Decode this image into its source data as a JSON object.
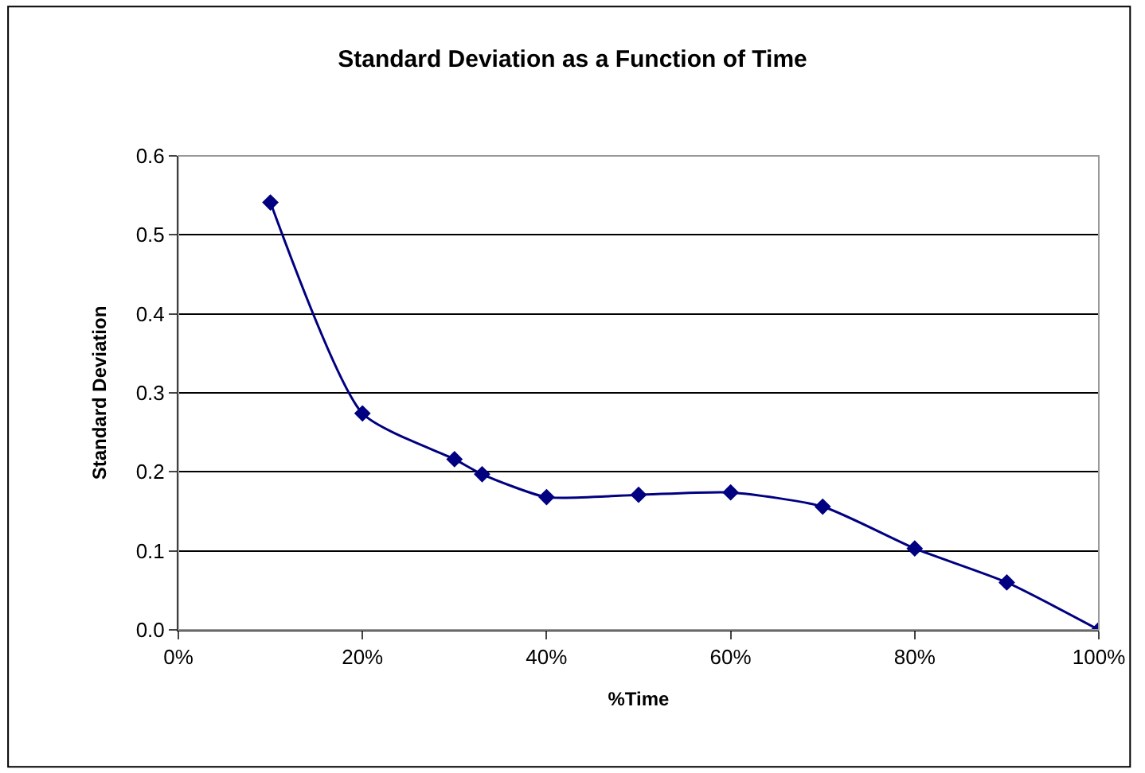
{
  "chart_data": {
    "type": "line",
    "title": "Standard Deviation as a Function of Time",
    "xlabel": "%Time",
    "ylabel": "Standard Deviation",
    "x": [
      0.1,
      0.2,
      0.3,
      0.33,
      0.4,
      0.5,
      0.6,
      0.7,
      0.8,
      0.9,
      1.0
    ],
    "series": [
      {
        "color": "#000080",
        "values": [
          0.541,
          0.274,
          0.216,
          0.197,
          0.168,
          0.171,
          0.174,
          0.156,
          0.103,
          0.06,
          0.0
        ]
      }
    ],
    "xlim": [
      0,
      1
    ],
    "xticks": [
      {
        "value": 0,
        "label": "0%"
      },
      {
        "value": 0.2,
        "label": "20%"
      },
      {
        "value": 0.4,
        "label": "40%"
      },
      {
        "value": 0.6,
        "label": "60%"
      },
      {
        "value": 0.8,
        "label": "80%"
      },
      {
        "value": 1,
        "label": "100%"
      }
    ],
    "ylim": [
      0,
      0.6
    ],
    "yticks": [
      {
        "value": 0,
        "label": "0.0"
      },
      {
        "value": 0.1,
        "label": "0.1"
      },
      {
        "value": 0.2,
        "label": "0.2"
      },
      {
        "value": 0.3,
        "label": "0.3"
      },
      {
        "value": 0.4,
        "label": "0.4"
      },
      {
        "value": 0.5,
        "label": "0.5"
      },
      {
        "value": 0.6,
        "label": "0.6"
      }
    ],
    "grid": "y",
    "marker": "diamond",
    "line_style": "solid"
  }
}
